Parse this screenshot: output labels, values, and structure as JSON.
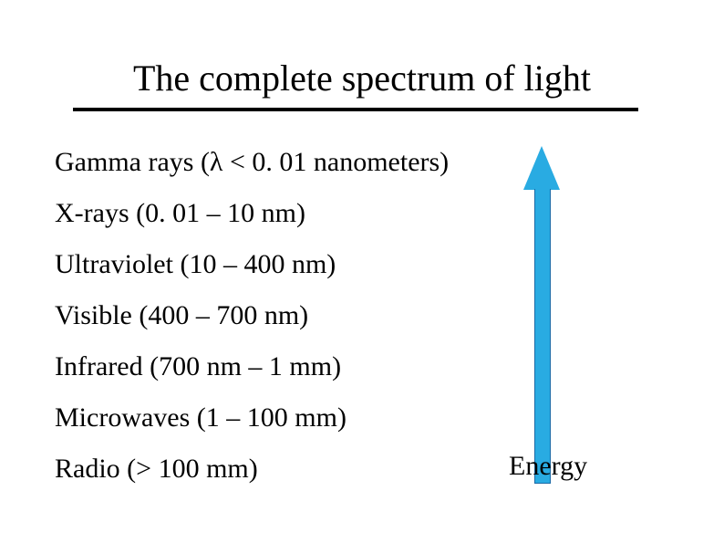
{
  "title": "The complete spectrum of light",
  "items": [
    "Gamma rays (λ < 0. 01 nanometers)",
    "X-rays (0. 01 – 10 nm)",
    "Ultraviolet (10 – 400 nm)",
    "Visible (400 – 700 nm)",
    "Infrared (700 nm – 1 mm)",
    "Microwaves (1 – 100 mm)",
    "Radio (> 100 mm)"
  ],
  "energy_label": "Energy",
  "title_fontsize": 40,
  "body_fontsize": 30,
  "arrow": {
    "fill_color": "#29abe2",
    "border_color": "#1a6aa6",
    "head_width": 40,
    "head_height": 48,
    "shaft_width": 16,
    "total_height": 370
  },
  "colors": {
    "background": "#ffffff",
    "text": "#000000",
    "underline": "#000000"
  }
}
